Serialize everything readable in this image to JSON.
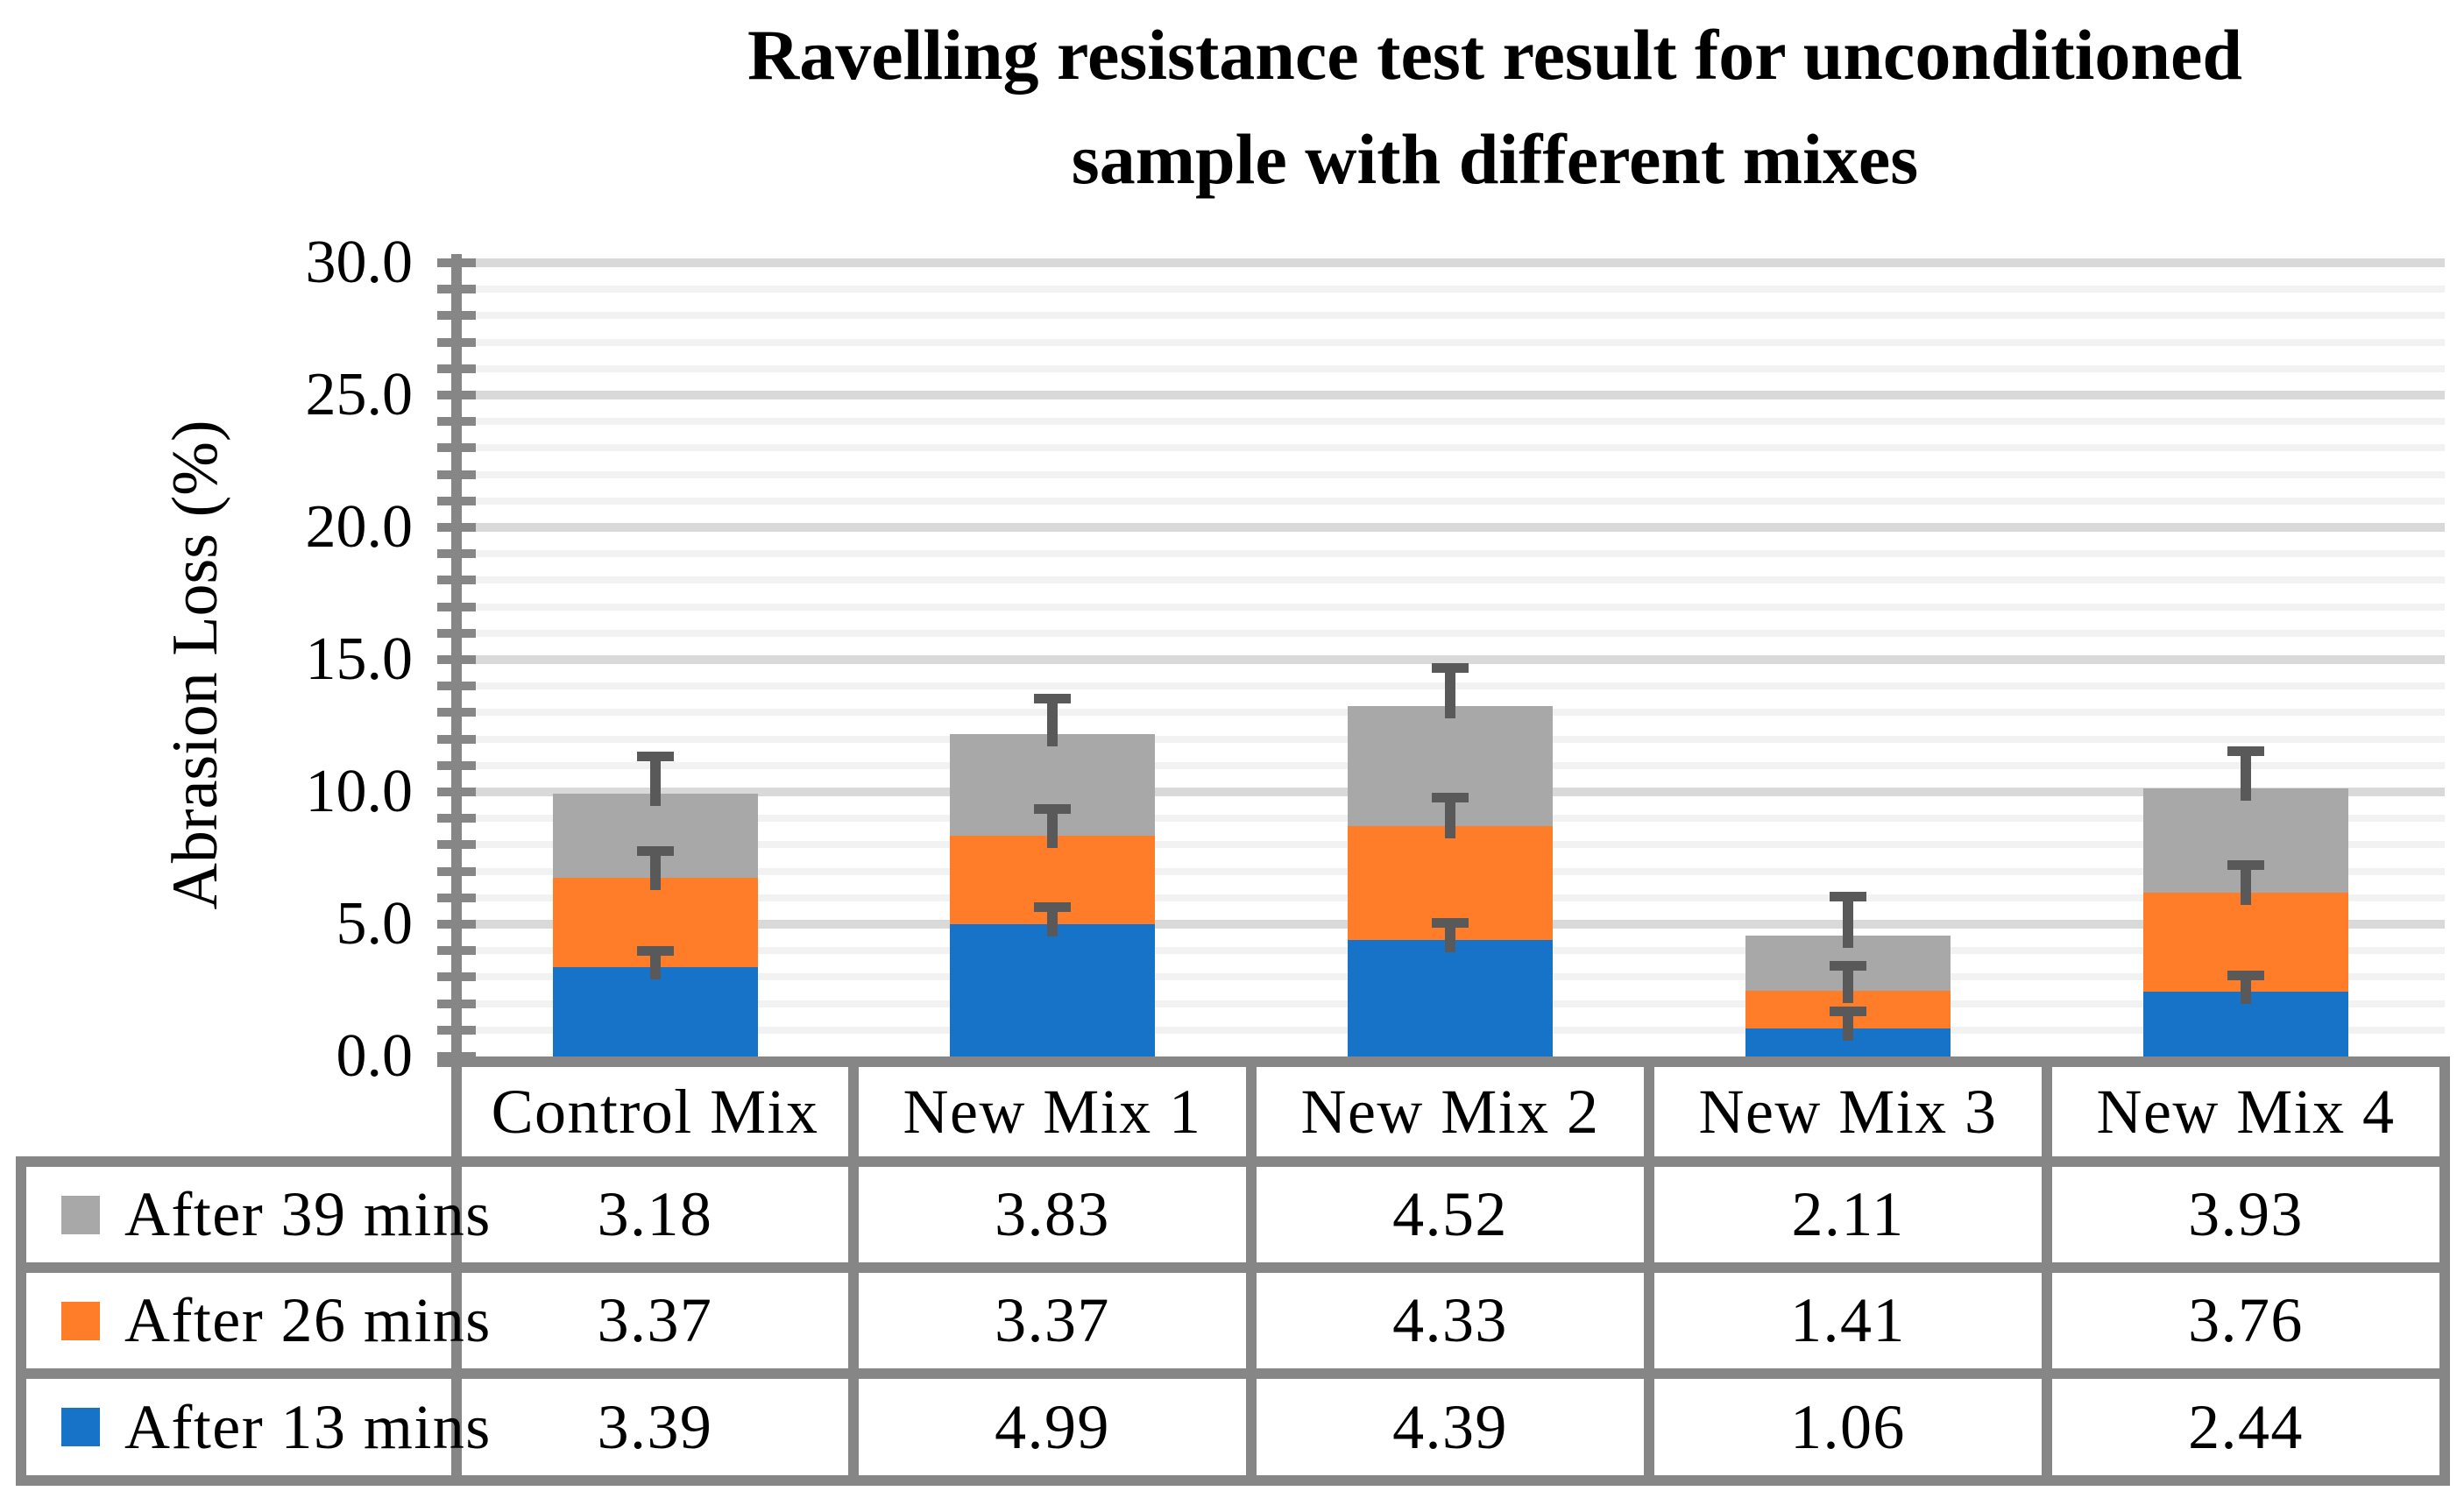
{
  "title": {
    "line1": "Ravelling resistance test result for unconditioned",
    "line2": "sample with different mixes"
  },
  "y_axis": {
    "title": "Abrasion Loss  (%)",
    "min": 0,
    "max": 30,
    "major_step": 5,
    "minor_step": 1,
    "tick_labels": [
      "0.0",
      "5.0",
      "10.0",
      "15.0",
      "20.0",
      "25.0",
      "30.0"
    ]
  },
  "chart_data": {
    "type": "bar",
    "stacked": true,
    "title": "Ravelling resistance test result for unconditioned sample with different mixes",
    "xlabel": "",
    "ylabel": "Abrasion Loss (%)",
    "ylim": [
      0,
      30
    ],
    "grid": "horizontal, minor every 1 (light), major every 5 (darker)",
    "legend_position": "left column of data table below chart",
    "categories": [
      "Control Mix",
      "New Mix 1",
      "New Mix 2",
      "New Mix 3",
      "New Mix 4"
    ],
    "series": [
      {
        "name": "After 13 mins",
        "color": "#1773C8",
        "values": [
          3.39,
          4.99,
          4.39,
          1.06,
          2.44
        ],
        "error_plus": [
          0.65,
          0.72,
          0.7,
          0.7,
          0.68
        ]
      },
      {
        "name": "After 26 mins",
        "color": "#FF7D28",
        "values": [
          3.37,
          3.37,
          4.33,
          1.41,
          3.76
        ],
        "error_plus": [
          1.05,
          1.05,
          1.1,
          1.0,
          1.1
        ]
      },
      {
        "name": "After 39 mins",
        "color": "#A8A8A8",
        "values": [
          3.18,
          3.83,
          4.52,
          2.11,
          3.93
        ],
        "error_plus": [
          1.45,
          1.4,
          1.5,
          1.5,
          1.45
        ]
      }
    ],
    "error_bars": {
      "direction": "plus",
      "caps": true,
      "color": "#595959"
    }
  },
  "data_table": {
    "header_row": [
      "Control Mix",
      "New Mix 1",
      "New Mix 2",
      "New Mix 3",
      "New Mix 4"
    ],
    "rows": [
      {
        "label": "After 39 mins",
        "swatch_color": "#A8A8A8",
        "values": [
          "3.18",
          "3.83",
          "4.52",
          "2.11",
          "3.93"
        ]
      },
      {
        "label": "After 26 mins",
        "swatch_color": "#FF7D28",
        "values": [
          "3.37",
          "3.37",
          "4.33",
          "1.41",
          "3.76"
        ]
      },
      {
        "label": "After 13 mins",
        "swatch_color": "#1773C8",
        "values": [
          "3.39",
          "4.99",
          "4.39",
          "1.06",
          "2.44"
        ]
      }
    ]
  },
  "colors": {
    "axis": "#868686",
    "table_border": "#868686",
    "gridline_major": "#D9D9D9",
    "gridline_minor": "#F2F2F2",
    "error_bar": "#595959",
    "background": "#FFFFFF"
  }
}
